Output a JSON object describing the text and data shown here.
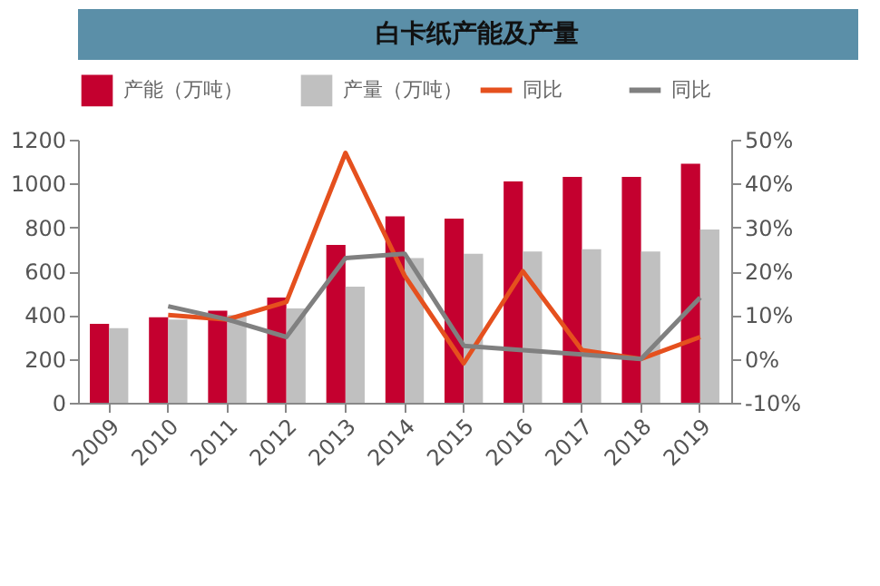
{
  "chart_data": {
    "type": "bar",
    "title": "白卡纸产能及产量",
    "categories": [
      "2009",
      "2010",
      "2011",
      "2012",
      "2013",
      "2014",
      "2015",
      "2016",
      "2017",
      "2018",
      "2019"
    ],
    "series": [
      {
        "name": "产能（万吨）",
        "color": "#c4002f",
        "values": [
          360,
          390,
          420,
          480,
          720,
          850,
          840,
          1010,
          1030,
          1030,
          1090
        ]
      },
      {
        "name": "产量（万吨）",
        "color": "#c0c0c0",
        "values": [
          340,
          380,
          400,
          430,
          530,
          660,
          680,
          690,
          700,
          690,
          790
        ]
      },
      {
        "name": "同比",
        "color": "#e5501e",
        "type": "line",
        "axis": "y2",
        "values": [
          null,
          10,
          9,
          13,
          47,
          19,
          -1,
          20,
          2,
          0,
          5
        ]
      },
      {
        "name": "同比",
        "color": "#808080",
        "type": "line",
        "axis": "y2",
        "values": [
          null,
          12,
          9,
          5,
          23,
          24,
          3,
          2,
          1,
          0,
          14
        ]
      }
    ],
    "ylim": [
      0,
      1200
    ],
    "yticks": [
      0,
      200,
      400,
      600,
      800,
      1000,
      1200
    ],
    "y2lim": [
      -10,
      50
    ],
    "y2ticks": [
      {
        "value": -10,
        "label": "-10%"
      },
      {
        "value": 0,
        "label": "0%"
      },
      {
        "value": 10,
        "label": "10%"
      },
      {
        "value": 20,
        "label": "20%"
      },
      {
        "value": 30,
        "label": "30%"
      },
      {
        "value": 40,
        "label": "40%"
      },
      {
        "value": 50,
        "label": "50%"
      }
    ],
    "legend": "top"
  }
}
